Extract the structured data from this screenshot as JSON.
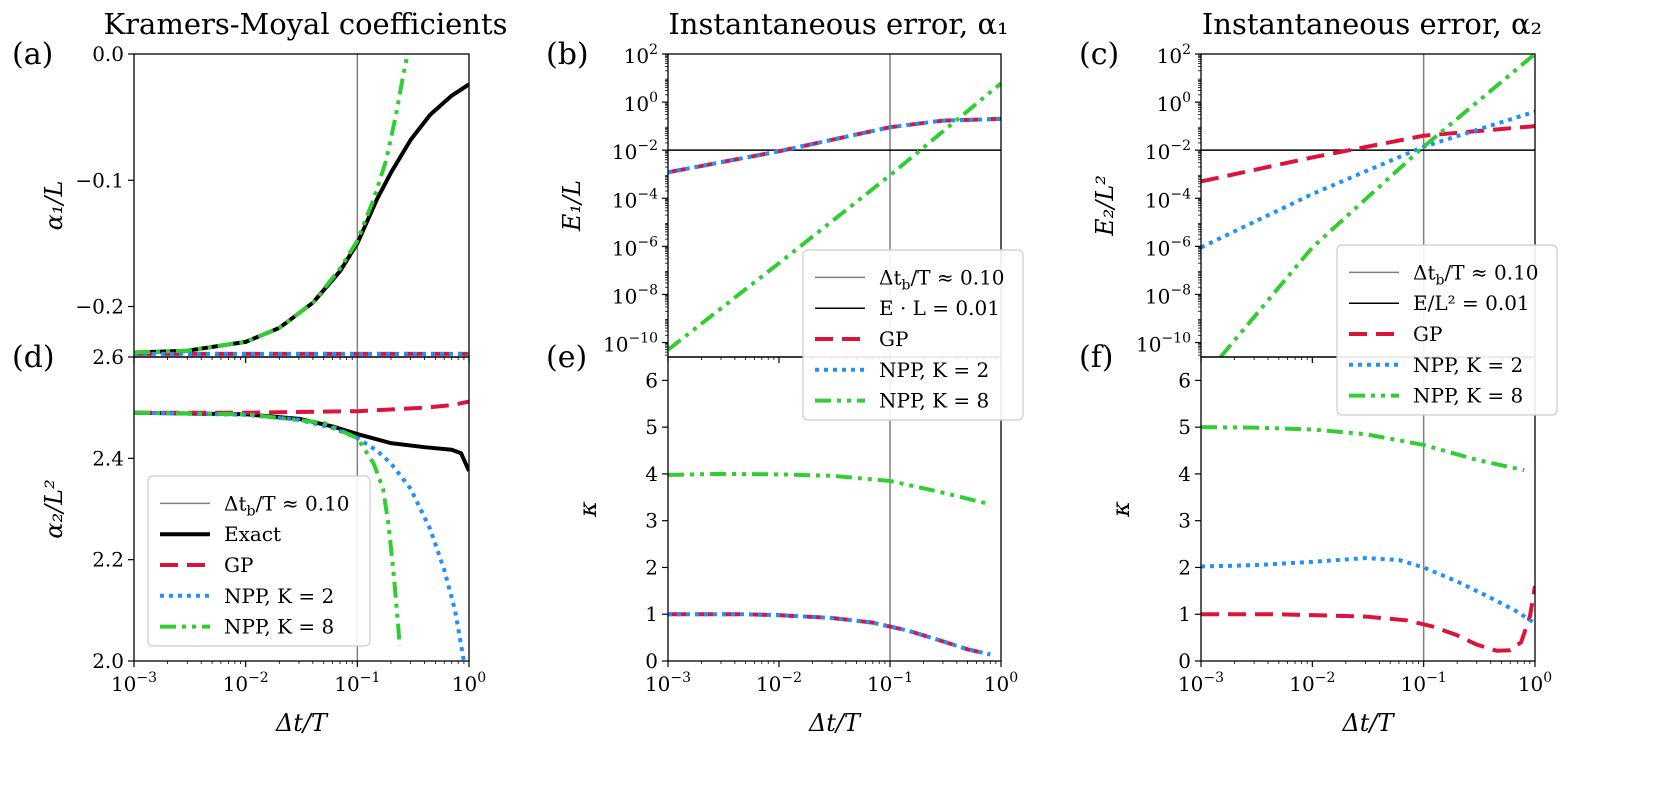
{
  "colors": {
    "exact": "#000000",
    "gp": "#dc143c",
    "npp2": "#1e90ff",
    "npp8": "#32cd32",
    "vline": "#808080",
    "hline": "#000000"
  },
  "chart_data": [
    {
      "id": "a",
      "panel_label": "(a)",
      "type": "line",
      "title": "Kramers-Moyal coefficients",
      "xlabel": "Δt/T",
      "ylabel": "α₁/L",
      "xscale": "log",
      "xlim": [
        0.001,
        1
      ],
      "ylim": [
        -0.24,
        0.0
      ],
      "xticks": [],
      "yticks": [
        {
          "v": 0.0,
          "label": "0.0"
        },
        {
          "v": -0.1,
          "label": "−0.1"
        },
        {
          "v": -0.2,
          "label": "−0.2"
        }
      ],
      "vline": 0.1,
      "series": [
        {
          "name": "Exact",
          "key": "exact",
          "style": "solid",
          "width": 4,
          "x": [
            0.001,
            0.003,
            0.01,
            0.02,
            0.04,
            0.07,
            0.1,
            0.15,
            0.2,
            0.3,
            0.45,
            0.7,
            1.0
          ],
          "y": [
            -0.2364,
            -0.235,
            -0.228,
            -0.217,
            -0.197,
            -0.172,
            -0.15,
            -0.115,
            -0.094,
            -0.068,
            -0.048,
            -0.033,
            -0.024
          ]
        },
        {
          "name": "GP",
          "key": "gp",
          "style": "dash",
          "width": 4,
          "x": [
            0.001,
            1.0
          ],
          "y": [
            -0.2375,
            -0.2375
          ]
        },
        {
          "name": "NPP, K=2",
          "key": "npp2",
          "style": "dot",
          "width": 4,
          "x": [
            0.001,
            1.0
          ],
          "y": [
            -0.2375,
            -0.2375
          ]
        },
        {
          "name": "NPP, K=8",
          "key": "npp8",
          "style": "dashdotdot",
          "width": 4,
          "x": [
            0.001,
            0.003,
            0.01,
            0.02,
            0.04,
            0.07,
            0.1,
            0.14,
            0.18,
            0.22,
            0.26,
            0.29
          ],
          "y": [
            -0.2364,
            -0.235,
            -0.228,
            -0.217,
            -0.197,
            -0.17,
            -0.148,
            -0.115,
            -0.085,
            -0.05,
            -0.015,
            0.005
          ]
        }
      ]
    },
    {
      "id": "b",
      "panel_label": "(b)",
      "type": "line",
      "title": "Instantaneous error, α₁",
      "xlabel": "Δt/T",
      "ylabel": "E₁/L",
      "xscale": "log",
      "yscale": "log",
      "xlim": [
        0.001,
        1
      ],
      "ylim": [
        2.5e-11,
        100
      ],
      "xticks": [],
      "yticks": [
        {
          "v": 100,
          "b": "10",
          "e": "2"
        },
        {
          "v": 1,
          "b": "10",
          "e": "0"
        },
        {
          "v": 0.01,
          "b": "10",
          "e": "−2"
        },
        {
          "v": 0.0001,
          "b": "10",
          "e": "−4"
        },
        {
          "v": 1e-06,
          "b": "10",
          "e": "−6"
        },
        {
          "v": 1e-08,
          "b": "10",
          "e": "−8"
        },
        {
          "v": 1e-10,
          "b": "10",
          "e": "−10"
        }
      ],
      "vline": 0.1,
      "hline": 0.01,
      "series": [
        {
          "name": "GP",
          "key": "gp",
          "style": "dash",
          "width": 4,
          "x": [
            0.001,
            0.01,
            0.1,
            0.3,
            1.0
          ],
          "y": [
            0.0012,
            0.009,
            0.09,
            0.17,
            0.2
          ]
        },
        {
          "name": "NPP, K=2",
          "key": "npp2",
          "style": "dot",
          "width": 4,
          "x": [
            0.001,
            0.01,
            0.1,
            0.3,
            1.0
          ],
          "y": [
            0.0012,
            0.009,
            0.09,
            0.17,
            0.2
          ]
        },
        {
          "name": "NPP, K=8",
          "key": "npp8",
          "style": "dashdotdot",
          "width": 4,
          "x": [
            0.001,
            0.01,
            0.1,
            1.0
          ],
          "y": [
            5e-11,
            2e-07,
            0.0009,
            6
          ]
        }
      ],
      "legend": {
        "position": "lower-right",
        "entries": [
          {
            "key": "vline",
            "style": "solid",
            "width": 1.5,
            "text": "Δt_b/T ≈ 0.10"
          },
          {
            "key": "hline",
            "style": "solid",
            "width": 1.5,
            "text": "E · L = 0.01"
          },
          {
            "key": "gp",
            "style": "dash",
            "width": 4,
            "text": "GP"
          },
          {
            "key": "npp2",
            "style": "dot",
            "width": 4,
            "text": "NPP, K = 2"
          },
          {
            "key": "npp8",
            "style": "dashdotdot",
            "width": 4,
            "text": "NPP, K = 8"
          }
        ]
      }
    },
    {
      "id": "c",
      "panel_label": "(c)",
      "type": "line",
      "title": "Instantaneous error, α₂",
      "xlabel": "Δt/T",
      "ylabel": "E₂/L²",
      "xscale": "log",
      "yscale": "log",
      "xlim": [
        0.001,
        1
      ],
      "ylim": [
        2.5e-11,
        100
      ],
      "xticks": [],
      "yticks": [
        {
          "v": 100,
          "b": "10",
          "e": "2"
        },
        {
          "v": 1,
          "b": "10",
          "e": "0"
        },
        {
          "v": 0.01,
          "b": "10",
          "e": "−2"
        },
        {
          "v": 0.0001,
          "b": "10",
          "e": "−4"
        },
        {
          "v": 1e-06,
          "b": "10",
          "e": "−6"
        },
        {
          "v": 1e-08,
          "b": "10",
          "e": "−8"
        },
        {
          "v": 1e-10,
          "b": "10",
          "e": "−10"
        }
      ],
      "vline": 0.1,
      "hline": 0.01,
      "series": [
        {
          "name": "GP",
          "key": "gp",
          "style": "dash",
          "width": 4,
          "x": [
            0.001,
            0.01,
            0.1,
            1.0
          ],
          "y": [
            0.0005,
            0.005,
            0.04,
            0.1
          ]
        },
        {
          "name": "NPP, K=2",
          "key": "npp2",
          "style": "dot",
          "width": 4,
          "x": [
            0.001,
            0.01,
            0.1,
            1.0
          ],
          "y": [
            9e-07,
            0.00015,
            0.014,
            0.4
          ]
        },
        {
          "name": "NPP, K=8",
          "key": "npp8",
          "style": "dashdotdot",
          "width": 4,
          "x": [
            0.0015,
            0.01,
            0.1,
            1.0
          ],
          "y": [
            2.5e-11,
            9e-07,
            0.014,
            100
          ]
        }
      ],
      "legend": {
        "position": "lower-right",
        "entries": [
          {
            "key": "vline",
            "style": "solid",
            "width": 1.5,
            "text": "Δt_b/T ≈ 0.10"
          },
          {
            "key": "hline",
            "style": "solid",
            "width": 1.5,
            "text": "E/L² = 0.01"
          },
          {
            "key": "gp",
            "style": "dash",
            "width": 4,
            "text": "GP"
          },
          {
            "key": "npp2",
            "style": "dot",
            "width": 4,
            "text": "NPP, K = 2"
          },
          {
            "key": "npp8",
            "style": "dashdotdot",
            "width": 4,
            "text": "NPP, K = 8"
          }
        ]
      }
    },
    {
      "id": "d",
      "panel_label": "(d)",
      "type": "line",
      "title": "",
      "xlabel": "Δt/T",
      "ylabel": "α₂/L²",
      "xscale": "log",
      "xlim": [
        0.001,
        1
      ],
      "ylim": [
        2.0,
        2.6
      ],
      "xticks": [
        {
          "v": 0.001,
          "b": "10",
          "e": "−3"
        },
        {
          "v": 0.01,
          "b": "10",
          "e": "−2"
        },
        {
          "v": 0.1,
          "b": "10",
          "e": "−1"
        },
        {
          "v": 1,
          "b": "10",
          "e": "0"
        }
      ],
      "yticks": [
        {
          "v": 2.6,
          "label": "2.6"
        },
        {
          "v": 2.4,
          "label": "2.4"
        },
        {
          "v": 2.2,
          "label": "2.2"
        },
        {
          "v": 2.0,
          "label": "2.0"
        }
      ],
      "vline": 0.1,
      "series": [
        {
          "name": "Exact",
          "key": "exact",
          "style": "solid",
          "width": 4,
          "x": [
            0.001,
            0.01,
            0.03,
            0.06,
            0.1,
            0.2,
            0.4,
            0.7,
            0.85,
            1.0
          ],
          "y": [
            2.49,
            2.487,
            2.478,
            2.463,
            2.448,
            2.43,
            2.422,
            2.417,
            2.41,
            2.375
          ]
        },
        {
          "name": "GP",
          "key": "gp",
          "style": "dash",
          "width": 4,
          "x": [
            0.001,
            0.01,
            0.1,
            0.4,
            0.7,
            1.0
          ],
          "y": [
            2.49,
            2.49,
            2.493,
            2.5,
            2.505,
            2.512
          ]
        },
        {
          "name": "NPP, K=2",
          "key": "npp2",
          "style": "dot",
          "width": 4,
          "x": [
            0.001,
            0.01,
            0.03,
            0.06,
            0.1,
            0.15,
            0.2,
            0.3,
            0.45,
            0.6,
            0.75,
            0.9
          ],
          "y": [
            2.49,
            2.486,
            2.476,
            2.46,
            2.44,
            2.415,
            2.39,
            2.34,
            2.26,
            2.18,
            2.1,
            2.0
          ]
        },
        {
          "name": "NPP, K=8",
          "key": "npp8",
          "style": "dashdotdot",
          "width": 4,
          "x": [
            0.001,
            0.01,
            0.05,
            0.1,
            0.14,
            0.17,
            0.19,
            0.21,
            0.23,
            0.24
          ],
          "y": [
            2.49,
            2.487,
            2.47,
            2.44,
            2.39,
            2.34,
            2.27,
            2.18,
            2.08,
            2.03
          ]
        }
      ],
      "legend": {
        "position": "lower-left",
        "entries": [
          {
            "key": "vline",
            "style": "solid",
            "width": 1.5,
            "text": "Δt_b/T ≈ 0.10"
          },
          {
            "key": "exact",
            "style": "solid",
            "width": 4,
            "text": "Exact"
          },
          {
            "key": "gp",
            "style": "dash",
            "width": 4,
            "text": "GP"
          },
          {
            "key": "npp2",
            "style": "dot",
            "width": 4,
            "text": "NPP, K = 2"
          },
          {
            "key": "npp8",
            "style": "dashdotdot",
            "width": 4,
            "text": "NPP, K = 8"
          }
        ]
      }
    },
    {
      "id": "e",
      "panel_label": "(e)",
      "type": "line",
      "title": "",
      "xlabel": "Δt/T",
      "ylabel": "κ",
      "xscale": "log",
      "xlim": [
        0.001,
        1
      ],
      "ylim": [
        0,
        6.5
      ],
      "xticks": [
        {
          "v": 0.001,
          "b": "10",
          "e": "−3"
        },
        {
          "v": 0.01,
          "b": "10",
          "e": "−2"
        },
        {
          "v": 0.1,
          "b": "10",
          "e": "−1"
        },
        {
          "v": 1,
          "b": "10",
          "e": "0"
        }
      ],
      "yticks": [
        {
          "v": 0,
          "label": "0"
        },
        {
          "v": 1,
          "label": "1"
        },
        {
          "v": 2,
          "label": "2"
        },
        {
          "v": 3,
          "label": "3"
        },
        {
          "v": 4,
          "label": "4"
        },
        {
          "v": 5,
          "label": "5"
        },
        {
          "v": 6,
          "label": "6"
        }
      ],
      "vline": 0.1,
      "series": [
        {
          "name": "GP",
          "key": "gp",
          "style": "dash",
          "width": 4,
          "x": [
            0.001,
            0.005,
            0.01,
            0.03,
            0.07,
            0.15,
            0.3,
            0.5,
            0.8
          ],
          "y": [
            1.0,
            1.0,
            0.98,
            0.92,
            0.82,
            0.64,
            0.42,
            0.25,
            0.14
          ]
        },
        {
          "name": "NPP, K=2",
          "key": "npp2",
          "style": "dot",
          "width": 4,
          "x": [
            0.001,
            0.005,
            0.01,
            0.03,
            0.07,
            0.15,
            0.3,
            0.5,
            0.8
          ],
          "y": [
            1.0,
            1.0,
            0.98,
            0.92,
            0.82,
            0.64,
            0.42,
            0.25,
            0.14
          ]
        },
        {
          "name": "NPP, K=8",
          "key": "npp8",
          "style": "dashdotdot",
          "width": 4,
          "x": [
            0.001,
            0.003,
            0.01,
            0.03,
            0.1,
            0.3,
            0.8
          ],
          "y": [
            3.98,
            4.0,
            3.99,
            3.96,
            3.85,
            3.6,
            3.35
          ]
        }
      ]
    },
    {
      "id": "f",
      "panel_label": "(f)",
      "type": "line",
      "title": "",
      "xlabel": "Δt/T",
      "ylabel": "κ",
      "xscale": "log",
      "xlim": [
        0.001,
        1
      ],
      "ylim": [
        0,
        6.5
      ],
      "xticks": [
        {
          "v": 0.001,
          "b": "10",
          "e": "−3"
        },
        {
          "v": 0.01,
          "b": "10",
          "e": "−2"
        },
        {
          "v": 0.1,
          "b": "10",
          "e": "−1"
        },
        {
          "v": 1,
          "b": "10",
          "e": "0"
        }
      ],
      "yticks": [
        {
          "v": 0,
          "label": "0"
        },
        {
          "v": 1,
          "label": "1"
        },
        {
          "v": 2,
          "label": "2"
        },
        {
          "v": 3,
          "label": "3"
        },
        {
          "v": 4,
          "label": "4"
        },
        {
          "v": 5,
          "label": "5"
        },
        {
          "v": 6,
          "label": "6"
        }
      ],
      "vline": 0.1,
      "series": [
        {
          "name": "GP",
          "key": "gp",
          "style": "dash",
          "width": 4,
          "x": [
            0.001,
            0.005,
            0.01,
            0.03,
            0.07,
            0.12,
            0.2,
            0.3,
            0.45,
            0.6,
            0.75,
            0.9,
            1.0
          ],
          "y": [
            1.0,
            1.0,
            0.98,
            0.95,
            0.87,
            0.74,
            0.55,
            0.35,
            0.22,
            0.23,
            0.4,
            0.95,
            1.6
          ]
        },
        {
          "name": "NPP, K=2",
          "key": "npp2",
          "style": "dot",
          "width": 4,
          "x": [
            0.001,
            0.003,
            0.01,
            0.03,
            0.06,
            0.1,
            0.2,
            0.4,
            0.7,
            1.0
          ],
          "y": [
            2.02,
            2.05,
            2.12,
            2.2,
            2.16,
            2.0,
            1.7,
            1.35,
            1.05,
            0.8
          ]
        },
        {
          "name": "NPP, K=8",
          "key": "npp8",
          "style": "dashdotdot",
          "width": 4,
          "x": [
            0.001,
            0.003,
            0.01,
            0.03,
            0.1,
            0.3,
            0.8
          ],
          "y": [
            5.0,
            4.99,
            4.95,
            4.85,
            4.62,
            4.3,
            4.08
          ]
        }
      ]
    }
  ]
}
